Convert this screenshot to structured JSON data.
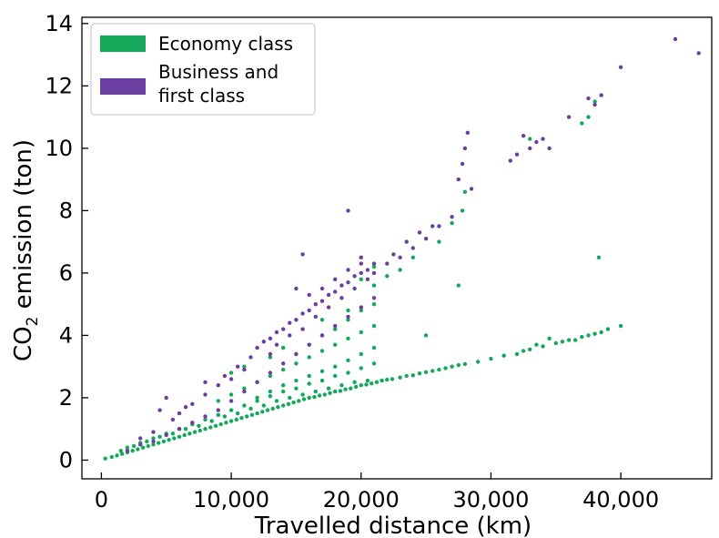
{
  "chart_data": {
    "type": "scatter",
    "title": "",
    "xlabel": "Travelled distance (km)",
    "ylabel_parts": {
      "pre": "CO",
      "sub": "2",
      "post": " emission (ton)"
    },
    "xlim": [
      -1500,
      47000
    ],
    "ylim": [
      -0.6,
      14.2
    ],
    "x_ticks": [
      0,
      10000,
      20000,
      30000,
      40000
    ],
    "x_tick_labels": [
      "0",
      "10,000",
      "20,000",
      "30,000",
      "40,000"
    ],
    "y_ticks": [
      0,
      2,
      4,
      6,
      8,
      10,
      12,
      14
    ],
    "y_tick_labels": [
      "0",
      "2",
      "4",
      "6",
      "8",
      "10",
      "12",
      "14"
    ],
    "grid": false,
    "legend_position": "top-left",
    "series": [
      {
        "name": "Economy class",
        "color": "#14a85a",
        "points": [
          [
            300,
            0.05
          ],
          [
            800,
            0.1
          ],
          [
            1200,
            0.15
          ],
          [
            1600,
            0.2
          ],
          [
            2000,
            0.25
          ],
          [
            2400,
            0.3
          ],
          [
            2800,
            0.35
          ],
          [
            3200,
            0.4
          ],
          [
            3600,
            0.45
          ],
          [
            4000,
            0.5
          ],
          [
            4400,
            0.55
          ],
          [
            4800,
            0.6
          ],
          [
            5200,
            0.65
          ],
          [
            5600,
            0.7
          ],
          [
            6000,
            0.75
          ],
          [
            6400,
            0.8
          ],
          [
            6800,
            0.85
          ],
          [
            7200,
            0.9
          ],
          [
            7600,
            0.95
          ],
          [
            8000,
            1.0
          ],
          [
            8400,
            1.05
          ],
          [
            8800,
            1.1
          ],
          [
            9200,
            1.15
          ],
          [
            9600,
            1.2
          ],
          [
            10000,
            1.25
          ],
          [
            10400,
            1.3
          ],
          [
            10800,
            1.35
          ],
          [
            11200,
            1.4
          ],
          [
            11600,
            1.45
          ],
          [
            12000,
            1.5
          ],
          [
            12400,
            1.55
          ],
          [
            12800,
            1.6
          ],
          [
            13200,
            1.65
          ],
          [
            13600,
            1.7
          ],
          [
            14000,
            1.75
          ],
          [
            14400,
            1.8
          ],
          [
            14800,
            1.85
          ],
          [
            15200,
            1.9
          ],
          [
            15600,
            1.95
          ],
          [
            16000,
            2.0
          ],
          [
            16400,
            2.02
          ],
          [
            16800,
            2.07
          ],
          [
            17200,
            2.1
          ],
          [
            17600,
            2.15
          ],
          [
            18000,
            2.2
          ],
          [
            18400,
            2.22
          ],
          [
            18800,
            2.27
          ],
          [
            19200,
            2.3
          ],
          [
            19600,
            2.35
          ],
          [
            20000,
            2.4
          ],
          [
            20400,
            2.42
          ],
          [
            20800,
            2.46
          ],
          [
            21200,
            2.5
          ],
          [
            21600,
            2.55
          ],
          [
            22000,
            2.58
          ],
          [
            22400,
            2.6
          ],
          [
            23000,
            2.65
          ],
          [
            23500,
            2.7
          ],
          [
            24000,
            2.72
          ],
          [
            24500,
            2.78
          ],
          [
            25000,
            2.82
          ],
          [
            25500,
            2.86
          ],
          [
            26000,
            2.9
          ],
          [
            26500,
            2.95
          ],
          [
            27000,
            3.0
          ],
          [
            27500,
            3.05
          ],
          [
            28000,
            3.08
          ],
          [
            29000,
            3.15
          ],
          [
            30000,
            3.25
          ],
          [
            31000,
            3.35
          ],
          [
            32000,
            3.4
          ],
          [
            33000,
            3.55
          ],
          [
            34000,
            3.65
          ],
          [
            35000,
            3.75
          ],
          [
            36000,
            3.85
          ],
          [
            37000,
            3.95
          ],
          [
            38000,
            4.05
          ],
          [
            39000,
            4.2
          ],
          [
            40000,
            4.3
          ],
          [
            1500,
            0.3
          ],
          [
            2500,
            0.45
          ],
          [
            3500,
            0.6
          ],
          [
            4500,
            0.75
          ],
          [
            5500,
            0.85
          ],
          [
            6500,
            1.0
          ],
          [
            7500,
            1.1
          ],
          [
            8500,
            1.25
          ],
          [
            9500,
            1.4
          ],
          [
            10500,
            1.5
          ],
          [
            11500,
            1.65
          ],
          [
            12500,
            1.75
          ],
          [
            13500,
            1.9
          ],
          [
            14500,
            2.0
          ],
          [
            15500,
            2.1
          ],
          [
            16500,
            2.2
          ],
          [
            17500,
            2.3
          ],
          [
            18500,
            2.4
          ],
          [
            19500,
            2.5
          ],
          [
            20500,
            2.55
          ],
          [
            2000,
            0.4
          ],
          [
            3000,
            0.55
          ],
          [
            4000,
            0.7
          ],
          [
            5000,
            0.85
          ],
          [
            6000,
            1.0
          ],
          [
            7000,
            1.15
          ],
          [
            8000,
            1.3
          ],
          [
            9000,
            1.45
          ],
          [
            10000,
            1.6
          ],
          [
            11000,
            1.75
          ],
          [
            12000,
            1.9
          ],
          [
            13000,
            2.05
          ],
          [
            14000,
            2.2
          ],
          [
            15000,
            2.3
          ],
          [
            16000,
            2.45
          ],
          [
            17000,
            2.55
          ],
          [
            18000,
            2.7
          ],
          [
            19000,
            2.8
          ],
          [
            20000,
            2.95
          ],
          [
            21000,
            3.1
          ],
          [
            9000,
            1.9
          ],
          [
            10000,
            2.1
          ],
          [
            11000,
            2.3
          ],
          [
            12000,
            2.5
          ],
          [
            13000,
            2.7
          ],
          [
            14000,
            2.9
          ],
          [
            15000,
            3.1
          ],
          [
            16000,
            3.3
          ],
          [
            17000,
            3.5
          ],
          [
            18000,
            3.7
          ],
          [
            19000,
            3.9
          ],
          [
            20000,
            4.1
          ],
          [
            21000,
            4.3
          ],
          [
            12000,
            2.0
          ],
          [
            13000,
            2.2
          ],
          [
            14000,
            2.4
          ],
          [
            15000,
            2.55
          ],
          [
            16000,
            2.7
          ],
          [
            17000,
            2.85
          ],
          [
            18000,
            3.0
          ],
          [
            19000,
            3.2
          ],
          [
            20000,
            3.4
          ],
          [
            21000,
            3.6
          ],
          [
            15000,
            3.4
          ],
          [
            16000,
            3.7
          ],
          [
            17000,
            4.0
          ],
          [
            18000,
            4.2
          ],
          [
            19000,
            4.5
          ],
          [
            20000,
            4.8
          ],
          [
            21000,
            5.0
          ],
          [
            10000,
            2.8
          ],
          [
            11000,
            3.0
          ],
          [
            13000,
            3.3
          ],
          [
            14000,
            3.6
          ],
          [
            17000,
            4.5
          ],
          [
            19000,
            4.8
          ],
          [
            21000,
            5.6
          ],
          [
            20000,
            5.8
          ],
          [
            21000,
            6.2
          ],
          [
            22000,
            5.9
          ],
          [
            23000,
            6.1
          ],
          [
            24000,
            6.5
          ],
          [
            26000,
            7.0
          ],
          [
            27000,
            7.6
          ],
          [
            27800,
            8.0
          ],
          [
            28000,
            8.6
          ],
          [
            27500,
            5.6
          ],
          [
            25000,
            4.0
          ],
          [
            33000,
            10.3
          ],
          [
            37000,
            10.8
          ],
          [
            37500,
            11.0
          ],
          [
            38000,
            11.5
          ],
          [
            38300,
            6.5
          ],
          [
            33500,
            3.7
          ],
          [
            37500,
            4.0
          ],
          [
            38500,
            4.1
          ],
          [
            34500,
            3.9
          ],
          [
            32500,
            3.5
          ],
          [
            36500,
            3.85
          ],
          [
            35500,
            3.8
          ]
        ]
      },
      {
        "name": "Business and\nfirst class",
        "color": "#6a3fa0",
        "points": [
          [
            2000,
            0.3
          ],
          [
            3000,
            0.5
          ],
          [
            4000,
            0.6
          ],
          [
            5000,
            0.8
          ],
          [
            6000,
            1.0
          ],
          [
            7000,
            1.2
          ],
          [
            8000,
            1.4
          ],
          [
            9000,
            1.6
          ],
          [
            10000,
            1.9
          ],
          [
            11000,
            2.2
          ],
          [
            12000,
            2.5
          ],
          [
            13000,
            2.8
          ],
          [
            14000,
            3.1
          ],
          [
            15000,
            3.4
          ],
          [
            16000,
            3.7
          ],
          [
            17000,
            4.0
          ],
          [
            18000,
            4.3
          ],
          [
            19000,
            4.6
          ],
          [
            20000,
            4.9
          ],
          [
            21000,
            5.2
          ],
          [
            4500,
            1.6
          ],
          [
            5000,
            2.0
          ],
          [
            6000,
            1.5
          ],
          [
            7000,
            1.8
          ],
          [
            8000,
            2.1
          ],
          [
            9000,
            2.4
          ],
          [
            10000,
            2.6
          ],
          [
            11000,
            2.9
          ],
          [
            12000,
            3.6
          ],
          [
            12500,
            3.8
          ],
          [
            13000,
            3.9
          ],
          [
            13500,
            4.1
          ],
          [
            14000,
            4.2
          ],
          [
            14500,
            4.4
          ],
          [
            15000,
            4.5
          ],
          [
            15500,
            4.7
          ],
          [
            16000,
            4.8
          ],
          [
            16500,
            5.0
          ],
          [
            17000,
            5.1
          ],
          [
            17500,
            5.3
          ],
          [
            18000,
            5.4
          ],
          [
            18500,
            5.6
          ],
          [
            19000,
            5.7
          ],
          [
            19500,
            5.9
          ],
          [
            20000,
            6.0
          ],
          [
            20500,
            6.1
          ],
          [
            21000,
            6.3
          ],
          [
            16500,
            4.6
          ],
          [
            17500,
            4.9
          ],
          [
            18500,
            5.2
          ],
          [
            19500,
            5.5
          ],
          [
            20500,
            5.8
          ],
          [
            15500,
            4.2
          ],
          [
            14500,
            4.0
          ],
          [
            13500,
            3.7
          ],
          [
            19000,
            6.1
          ],
          [
            20000,
            6.5
          ],
          [
            21000,
            6.0
          ],
          [
            18000,
            5.8
          ],
          [
            17000,
            5.5
          ],
          [
            22000,
            6.3
          ],
          [
            23000,
            6.5
          ],
          [
            24000,
            6.8
          ],
          [
            25000,
            7.1
          ],
          [
            26000,
            7.5
          ],
          [
            27000,
            7.8
          ],
          [
            27500,
            9.0
          ],
          [
            27800,
            9.5
          ],
          [
            28000,
            10.0
          ],
          [
            28200,
            10.5
          ],
          [
            28500,
            8.7
          ],
          [
            22500,
            6.6
          ],
          [
            23500,
            7.0
          ],
          [
            24500,
            7.3
          ],
          [
            25500,
            7.5
          ],
          [
            15500,
            6.6
          ],
          [
            19000,
            8.0
          ],
          [
            20000,
            6.3
          ],
          [
            15000,
            5.5
          ],
          [
            16000,
            5.3
          ],
          [
            9500,
            2.7
          ],
          [
            10500,
            3.0
          ],
          [
            11500,
            3.3
          ],
          [
            13000,
            3.4
          ],
          [
            8000,
            2.5
          ],
          [
            6500,
            1.7
          ],
          [
            5500,
            1.3
          ],
          [
            4000,
            0.9
          ],
          [
            3000,
            0.7
          ],
          [
            31500,
            9.6
          ],
          [
            32000,
            9.8
          ],
          [
            32500,
            10.4
          ],
          [
            33000,
            10.0
          ],
          [
            33500,
            10.2
          ],
          [
            34000,
            10.3
          ],
          [
            34500,
            10.0
          ],
          [
            36000,
            11.0
          ],
          [
            37500,
            11.6
          ],
          [
            38500,
            11.7
          ],
          [
            40000,
            12.6
          ],
          [
            44200,
            13.5
          ],
          [
            46000,
            13.05
          ],
          [
            38000,
            11.4
          ]
        ]
      }
    ]
  }
}
